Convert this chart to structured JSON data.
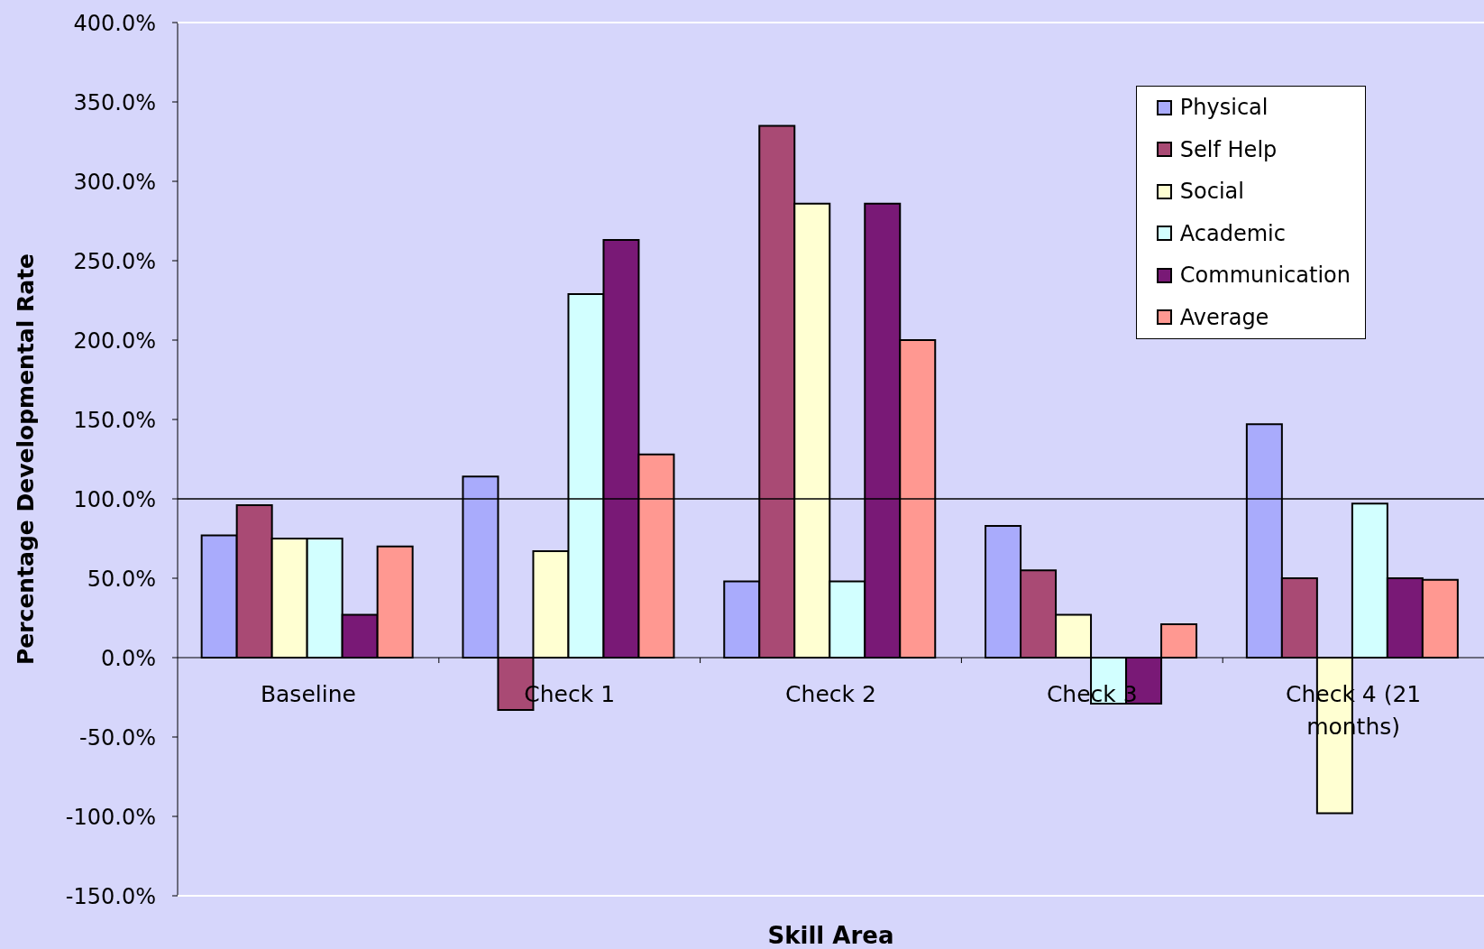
{
  "chart_data": {
    "type": "bar",
    "xlabel": "Skill Area",
    "ylabel": "Percentage Developmental Rate",
    "categories": [
      "Baseline",
      "Check 1",
      "Check 2",
      "Check 3",
      "Check 4 (21 months)"
    ],
    "series": [
      {
        "name": "Physical",
        "color": "#a9abfc",
        "values": [
          77,
          114,
          48,
          83,
          147
        ]
      },
      {
        "name": "Self Help",
        "color": "#a94a74",
        "values": [
          96,
          -33,
          335,
          55,
          50
        ]
      },
      {
        "name": "Social",
        "color": "#ffffd2",
        "values": [
          75,
          67,
          286,
          27,
          -98
        ]
      },
      {
        "name": "Academic",
        "color": "#d2ffff",
        "values": [
          75,
          229,
          48,
          -29,
          97
        ]
      },
      {
        "name": "Communication",
        "color": "#791976",
        "values": [
          27,
          263,
          286,
          -29,
          50
        ]
      },
      {
        "name": "Average",
        "color": "#ff9891",
        "values": [
          70,
          128,
          200,
          21,
          49
        ]
      }
    ],
    "ylim": [
      -150,
      400
    ],
    "yticks": [
      {
        "value": -150,
        "label": "-150.0%"
      },
      {
        "value": -100,
        "label": "-100.0%"
      },
      {
        "value": -50,
        "label": "-50.0%"
      },
      {
        "value": 0,
        "label": "0.0%"
      },
      {
        "value": 50,
        "label": "50.0%"
      },
      {
        "value": 100,
        "label": "100.0%"
      },
      {
        "value": 150,
        "label": "150.0%"
      },
      {
        "value": 200,
        "label": "200.0%"
      },
      {
        "value": 250,
        "label": "250.0%"
      },
      {
        "value": 300,
        "label": "300.0%"
      },
      {
        "value": 350,
        "label": "350.0%"
      },
      {
        "value": 400,
        "label": "400.0%"
      }
    ],
    "ref_lines": [
      {
        "axis": "y",
        "value": 100,
        "color": "#000000"
      }
    ],
    "legend": "top right"
  }
}
